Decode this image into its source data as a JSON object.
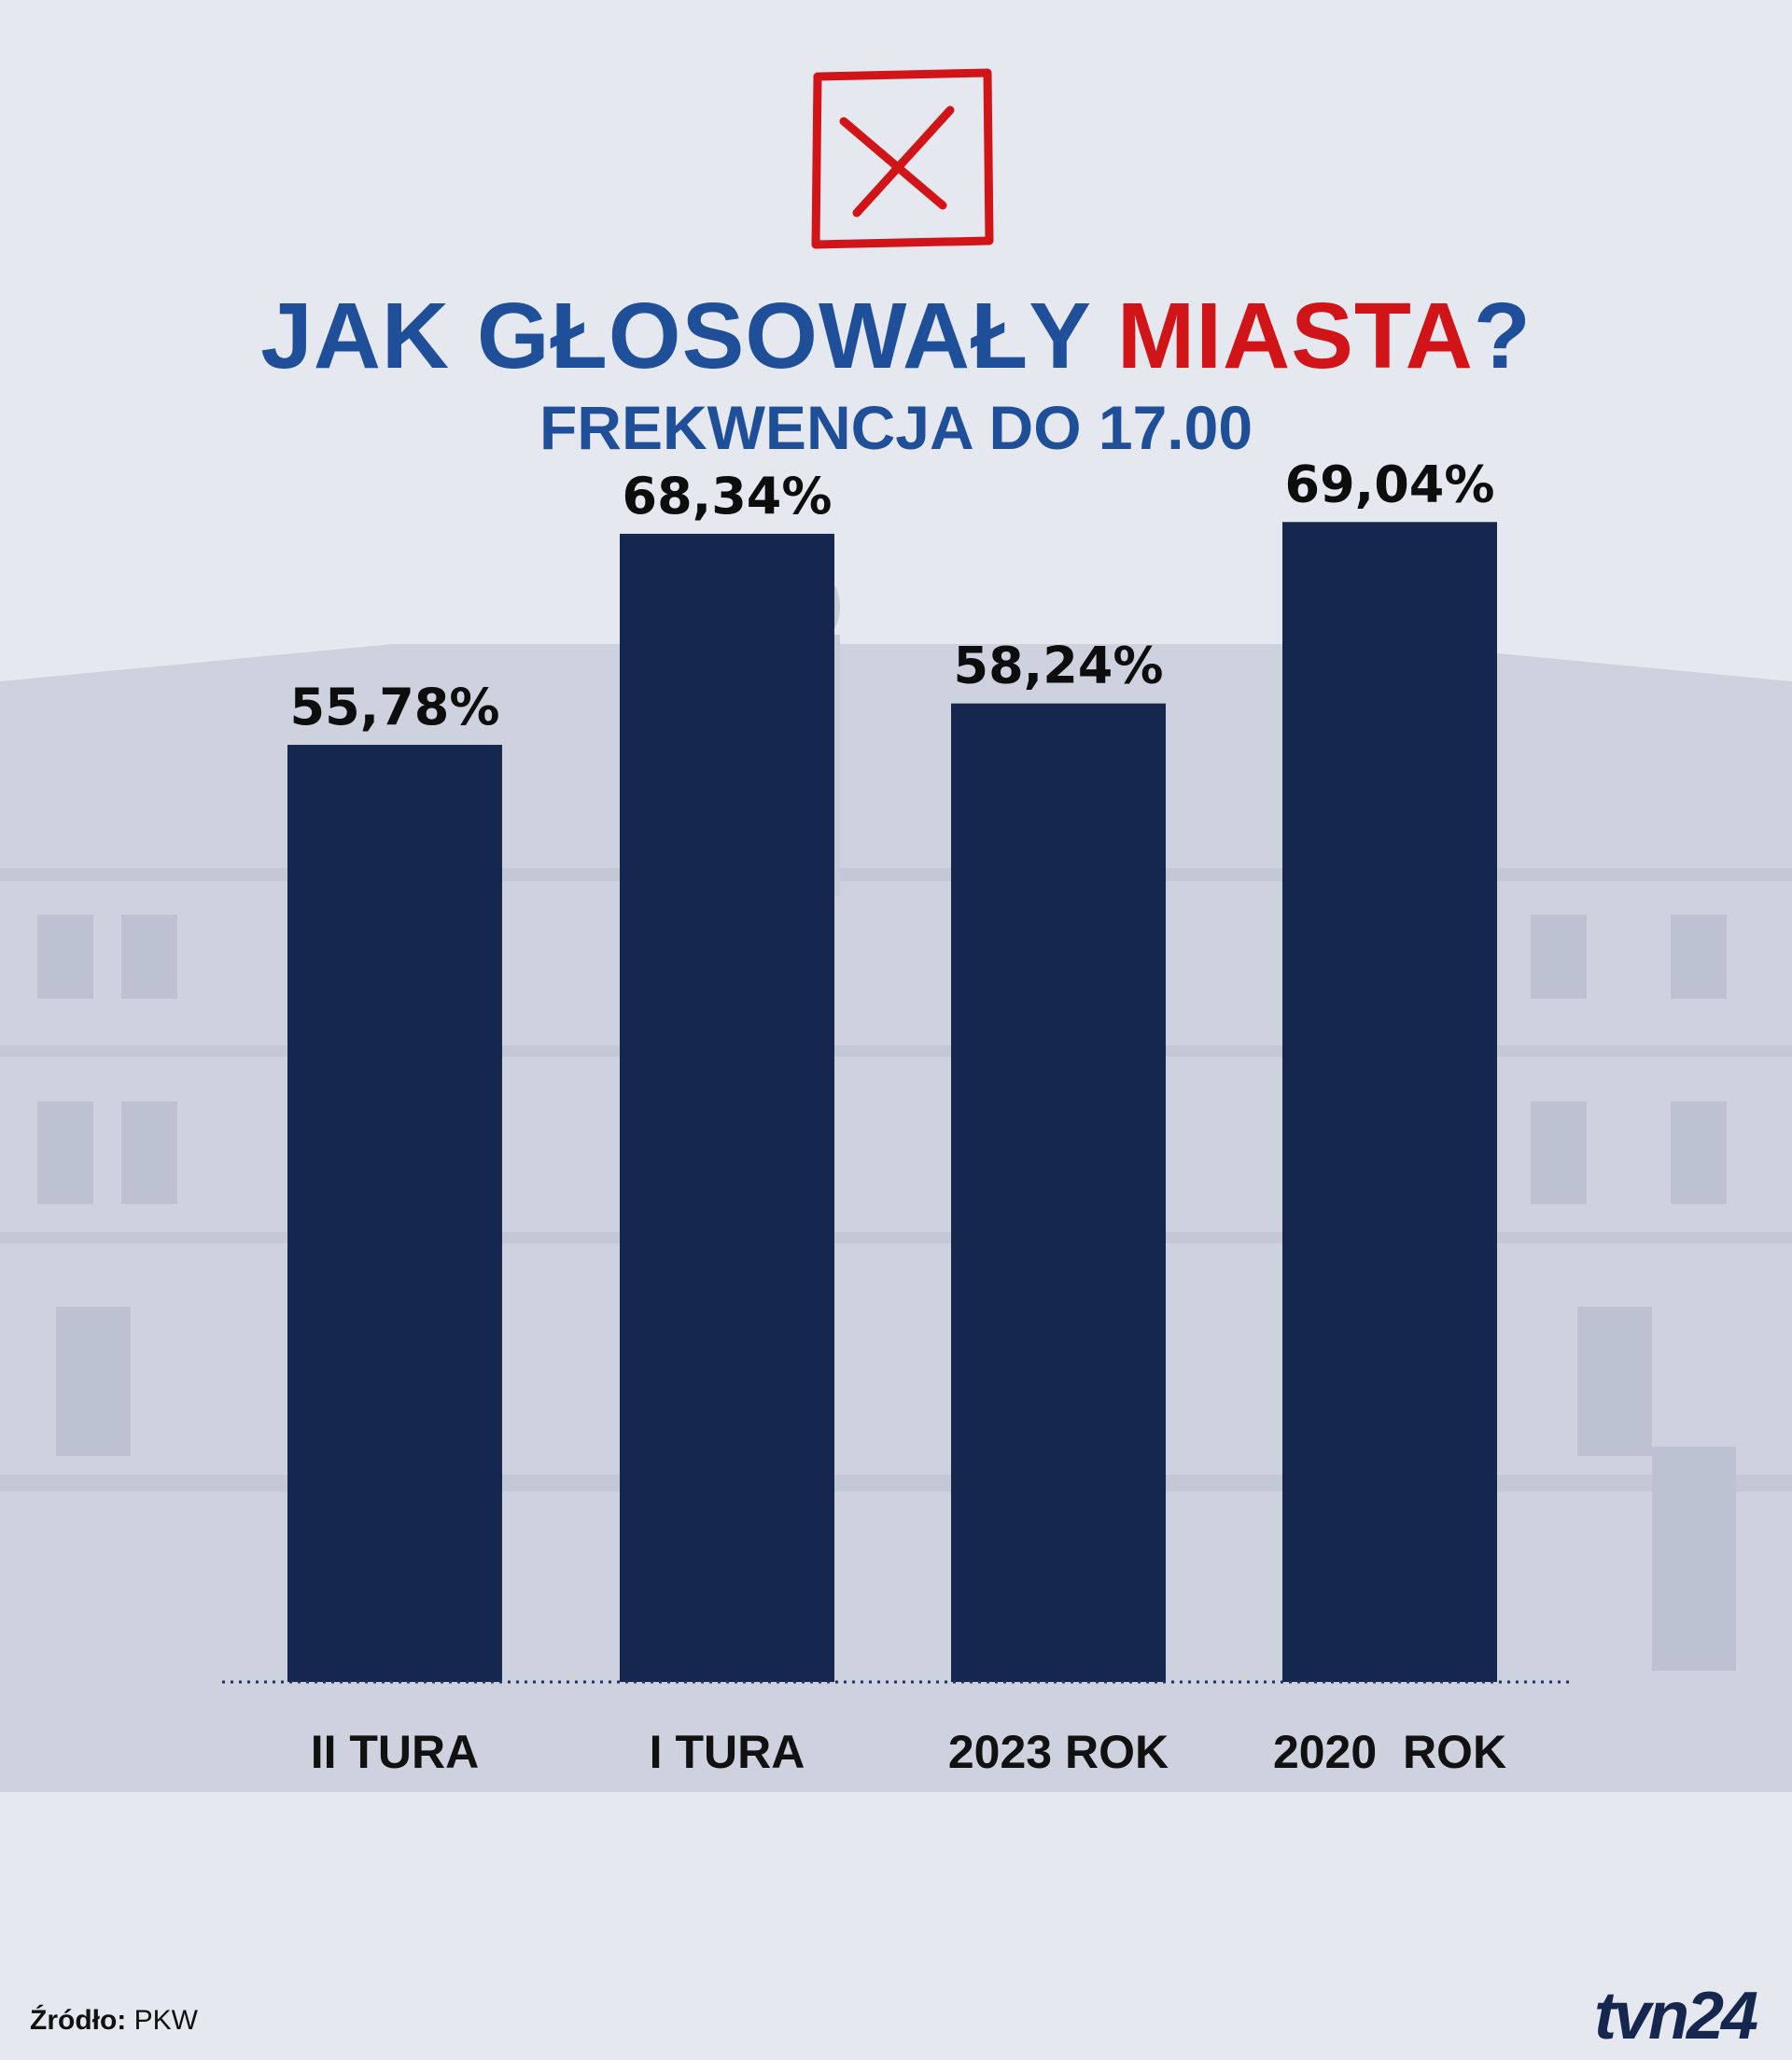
{
  "header": {
    "title_main": "JAK GŁOSOWAŁY ",
    "title_accent": "MIASTA",
    "title_end": "?",
    "subtitle": "FREKWENCJA DO 17.00"
  },
  "colors": {
    "title": "#1f4f99",
    "accent": "#d01418",
    "bar": "#16274f",
    "background": "#e5e8ef"
  },
  "chart_data": {
    "type": "bar",
    "title": "JAK GŁOSOWAŁY MIASTA?",
    "subtitle": "FREKWENCJA DO 17.00",
    "categories": [
      "II TURA",
      "I TURA",
      "2023 ROK",
      "2020  ROK"
    ],
    "values": [
      55.78,
      68.34,
      58.24,
      69.04
    ],
    "value_labels": [
      "55,78%",
      "68,34%",
      "58,24%",
      "69,04%"
    ],
    "unit": "%",
    "ylim": [
      0,
      100
    ],
    "grid": false,
    "legend": "none"
  },
  "footer": {
    "source_key": "Źródło:",
    "source_value": "PKW",
    "logo": "tvn24"
  },
  "icons": {
    "ballot": "ballot-x-icon"
  }
}
